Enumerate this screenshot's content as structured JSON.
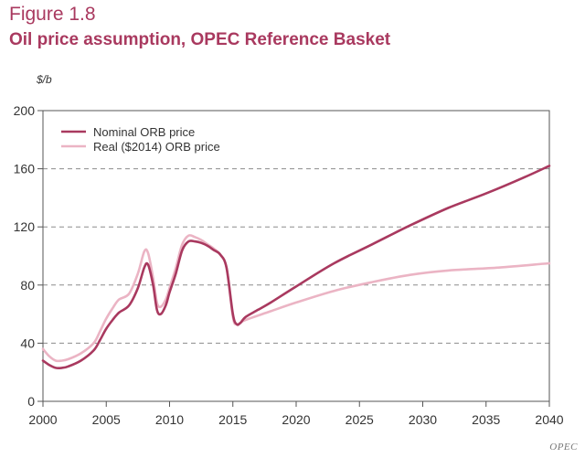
{
  "figure": {
    "label": "Figure 1.8",
    "title": "Oil price assumption, OPEC Reference Basket",
    "unit": "$/b",
    "source": "OPEC"
  },
  "chart_data": {
    "type": "line",
    "title": "Oil price assumption, OPEC Reference Basket",
    "xlabel": "",
    "ylabel": "$/b",
    "xlim": [
      2000,
      2040
    ],
    "ylim": [
      0,
      200
    ],
    "x_ticks": [
      2000,
      2005,
      2010,
      2015,
      2020,
      2025,
      2030,
      2035,
      2040
    ],
    "y_ticks": [
      0,
      40,
      80,
      120,
      160,
      200
    ],
    "grid": "horizontal dashed",
    "legend_position": "top-left",
    "series": [
      {
        "name": "Nominal ORB price",
        "color": "#a9395f",
        "x": [
          2000,
          2000.5,
          2001,
          2001.5,
          2002,
          2003,
          2004,
          2004.5,
          2005,
          2005.5,
          2006,
          2006.8,
          2007.5,
          2008,
          2008.3,
          2008.7,
          2009,
          2009.3,
          2009.7,
          2010,
          2010.5,
          2011,
          2011.5,
          2012,
          2012.5,
          2013,
          2013.5,
          2014,
          2014.5,
          2015,
          2015.3,
          2015.6,
          2016,
          2017,
          2018,
          2020,
          2023,
          2026,
          2029,
          2032,
          2035,
          2038,
          2040
        ],
        "y": [
          28,
          25,
          23,
          23,
          24,
          28,
          35,
          42,
          50,
          56,
          61,
          66,
          78,
          92,
          94,
          80,
          63,
          60,
          66,
          75,
          88,
          104,
          110,
          110,
          109,
          107,
          104,
          101,
          92,
          60,
          53,
          54,
          58,
          63,
          68,
          79,
          95,
          108,
          121,
          133,
          143,
          154,
          162
        ]
      },
      {
        "name": "Real ($2014) ORB price",
        "color": "#ebb4c4",
        "x": [
          2000,
          2000.5,
          2001,
          2001.5,
          2002,
          2003,
          2004,
          2004.5,
          2005,
          2005.5,
          2006,
          2006.8,
          2007.5,
          2008,
          2008.3,
          2008.7,
          2009,
          2009.3,
          2009.7,
          2010,
          2010.5,
          2011,
          2011.5,
          2012,
          2012.5,
          2013,
          2013.5,
          2014,
          2014.5,
          2015,
          2015.3,
          2015.6,
          2016,
          2018,
          2020,
          2023,
          2026,
          2029,
          2032,
          2036,
          2040
        ],
        "y": [
          36,
          31,
          28,
          28,
          29,
          33,
          40,
          48,
          57,
          64,
          70,
          74,
          88,
          103,
          102,
          85,
          68,
          65,
          70,
          78,
          92,
          108,
          114,
          113,
          111,
          108,
          105,
          101,
          92,
          58,
          53,
          54,
          56,
          62,
          68,
          76,
          82,
          87,
          90,
          92,
          95
        ]
      }
    ]
  }
}
